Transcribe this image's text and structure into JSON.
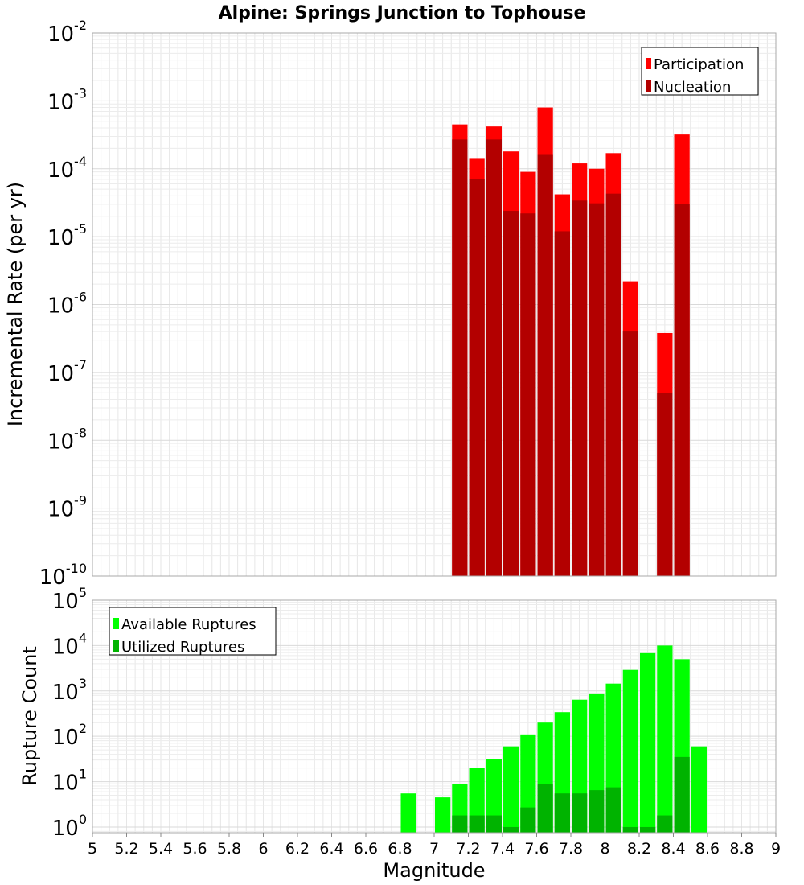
{
  "chart_data": [
    {
      "type": "bar",
      "title": "Alpine: Springs Junction to Tophouse",
      "xlabel": "",
      "ylabel": "Incremental Rate (per yr)",
      "xlim": [
        5,
        9
      ],
      "ylim": [
        1e-10,
        0.01
      ],
      "yscale": "log",
      "grid": true,
      "legend_position": "top-right",
      "colors": {
        "participation": "#ff0000",
        "nucleation": "#b30000"
      },
      "bin_width": 0.1,
      "x": [
        7.15,
        7.25,
        7.35,
        7.45,
        7.55,
        7.65,
        7.75,
        7.85,
        7.95,
        8.05,
        8.15,
        8.25,
        8.35,
        8.45
      ],
      "series": [
        {
          "name": "Participation",
          "values": [
            0.00045,
            0.00014,
            0.00042,
            0.00018,
            9e-05,
            0.0008,
            4.2e-05,
            0.00012,
            0.0001,
            0.00017,
            2.2e-06,
            null,
            3.8e-07,
            0.00032
          ]
        },
        {
          "name": "Nucleation",
          "values": [
            0.00027,
            7e-05,
            0.00027,
            2.4e-05,
            2.2e-05,
            0.00016,
            1.2e-05,
            3.4e-05,
            3.1e-05,
            4.3e-05,
            4e-07,
            null,
            5e-08,
            3e-05
          ]
        }
      ],
      "y_ticks": [
        {
          "base": "10",
          "exp": "-10"
        },
        {
          "base": "10",
          "exp": "-9"
        },
        {
          "base": "10",
          "exp": "-8"
        },
        {
          "base": "10",
          "exp": "-7"
        },
        {
          "base": "10",
          "exp": "-6"
        },
        {
          "base": "10",
          "exp": "-5"
        },
        {
          "base": "10",
          "exp": "-4"
        },
        {
          "base": "10",
          "exp": "-3"
        },
        {
          "base": "10",
          "exp": "-2"
        }
      ]
    },
    {
      "type": "bar",
      "title": "",
      "xlabel": "Magnitude",
      "ylabel": "Rupture Count",
      "xlim": [
        5,
        9
      ],
      "ylim": [
        0.75,
        100000
      ],
      "yscale": "log",
      "grid": true,
      "legend_position": "top-left",
      "colors": {
        "available": "#00ff00",
        "utilized": "#00b300"
      },
      "bin_width": 0.1,
      "x": [
        6.85,
        6.95,
        7.05,
        7.15,
        7.25,
        7.35,
        7.45,
        7.55,
        7.65,
        7.75,
        7.85,
        7.95,
        8.05,
        8.15,
        8.25,
        8.35,
        8.45,
        8.55
      ],
      "series": [
        {
          "name": "Available Ruptures",
          "values": [
            5.5,
            null,
            4.5,
            9,
            20,
            32,
            60,
            110,
            200,
            340,
            640,
            880,
            1450,
            2900,
            6800,
            10000,
            5000,
            60
          ]
        },
        {
          "name": "Utilized Ruptures",
          "values": [
            null,
            null,
            null,
            1.8,
            1.8,
            1.8,
            1,
            2.7,
            9,
            5.5,
            5.5,
            6.5,
            7.5,
            1,
            1,
            1.8,
            35,
            null
          ]
        }
      ],
      "x_ticks": [
        "5",
        "5.2",
        "5.4",
        "5.6",
        "5.8",
        "6",
        "6.2",
        "6.4",
        "6.6",
        "6.8",
        "7",
        "7.2",
        "7.4",
        "7.6",
        "7.8",
        "8",
        "8.2",
        "8.4",
        "8.6",
        "8.8",
        "9"
      ],
      "y_ticks": [
        {
          "base": "10",
          "exp": "0"
        },
        {
          "base": "10",
          "exp": "1"
        },
        {
          "base": "10",
          "exp": "2"
        },
        {
          "base": "10",
          "exp": "3"
        },
        {
          "base": "10",
          "exp": "4"
        },
        {
          "base": "10",
          "exp": "5"
        }
      ]
    }
  ]
}
